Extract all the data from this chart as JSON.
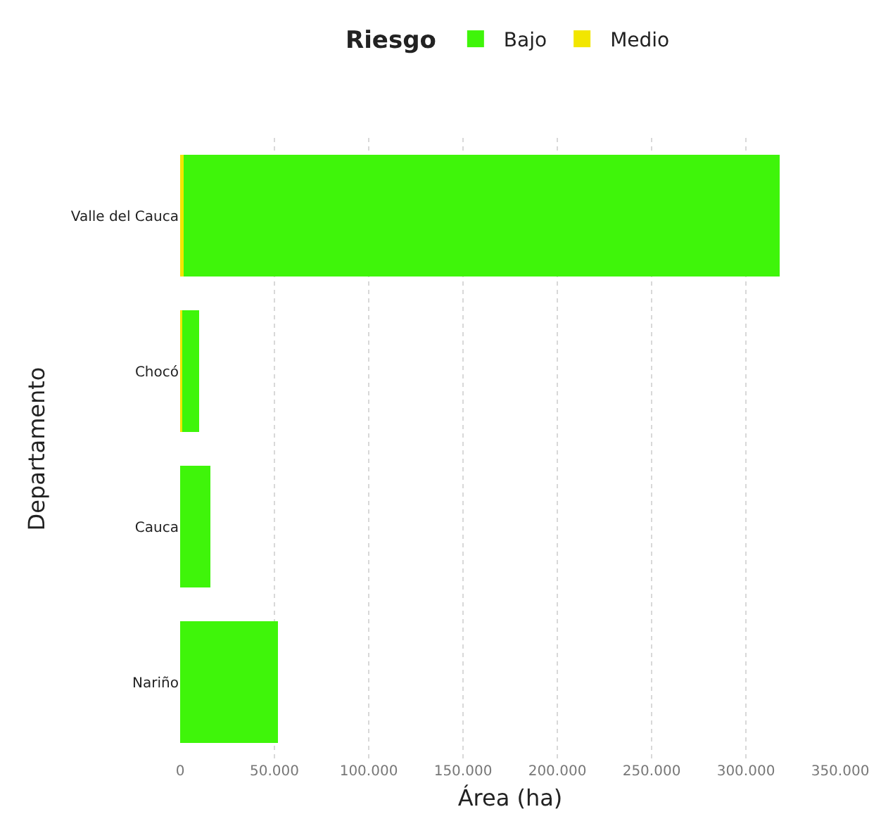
{
  "chart_data": {
    "type": "bar",
    "orientation": "horizontal",
    "stacked": true,
    "xlabel": "Área (ha)",
    "ylabel": "Departamento",
    "legend_title": "Riesgo",
    "legend": "top",
    "categories": [
      "Valle del Cauca",
      "Chocó",
      "Cauca",
      "Nariño"
    ],
    "series": [
      {
        "name": "Medio",
        "color": "#f2e600",
        "values": [
          2000,
          1000,
          null,
          null
        ]
      },
      {
        "name": "Bajo",
        "color": "#3ff50a",
        "values": [
          316000,
          9000,
          16000,
          52000
        ]
      }
    ],
    "xlim": [
      0,
      350000
    ],
    "xticks": [
      0,
      {
        "value": 50000,
        "label": "50.000"
      },
      {
        "value": 100000,
        "label": "100.000"
      },
      {
        "value": 150000,
        "label": "150.000"
      },
      {
        "value": 200000,
        "label": "200.000"
      },
      {
        "value": 250000,
        "label": "250.000"
      },
      {
        "value": 300000,
        "label": "300.000"
      },
      {
        "value": 350000,
        "label": "350.000"
      }
    ],
    "grid": "x"
  }
}
